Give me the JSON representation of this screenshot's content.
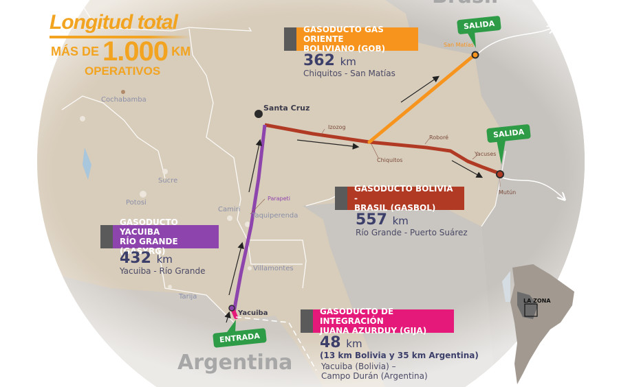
{
  "header": {
    "title": "Longitud total",
    "prefix": "MÁS DE",
    "amount": "1.000",
    "unit": "KM",
    "suffix": "OPERATIVOS"
  },
  "colors": {
    "gob": "#f7941d",
    "gasbol": "#b13a25",
    "gasyrg": "#8e44ad",
    "gija": "#e5197a",
    "callout": "#2e9b47",
    "headline": "#f2a31f"
  },
  "pipelines": [
    {
      "id": "gob",
      "name_line1": "GASODUCTO GAS ORIENTE",
      "name_line2": "BOLIVIANO (GOB)",
      "length": "362",
      "unit": "km",
      "route": "Chiquitos - San Matías"
    },
    {
      "id": "gasbol",
      "name_line1": "GASODUCTO BOLIVIA -",
      "name_line2": "BRASIL (GASBOL)",
      "length": "557",
      "unit": "km",
      "route": "Río Grande - Puerto Suárez"
    },
    {
      "id": "gasyrg",
      "name_line1": "GASODUCTO YACUIBA",
      "name_line2": "RÍO GRANDE (GASYRG)",
      "length": "432",
      "unit": "km",
      "route": "Yacuiba - Río Grande"
    },
    {
      "id": "gija",
      "name_line1": "GASODUCTO DE INTEGRACIÓN",
      "name_line2": "JUANA AZURDUY (GIJA)",
      "length": "48",
      "unit": "km",
      "detail": "(13 km Bolivia y 35 km Argentina)",
      "route_line1": "Yacuiba (Bolivia) –",
      "route_line2": "Campo Durán (Argentina)"
    }
  ],
  "callouts": {
    "exit1": "SALIDA",
    "exit2": "SALIDA",
    "entry": "ENTRADA"
  },
  "places": {
    "santa_cruz": "Santa Cruz",
    "cochabamba": "Cochabamba",
    "sucre": "Sucre",
    "potosi": "Potosi",
    "camiri": "Camiri",
    "parapeti": "Parapeti",
    "taquiperenda": "Taquiperenda",
    "villamontes": "Villamontes",
    "tarija": "Tarija",
    "yacuiba": "Yacuiba",
    "izozog": "Izozog",
    "chiquitos": "Chiquitos",
    "robore": "Roboré",
    "yacuses": "Yacuses",
    "san_matias": "San Matías",
    "mutun": "Mutún"
  },
  "countries": {
    "argentina": "Argentina",
    "brasil": "Brasil"
  },
  "inset": {
    "label": "LA ZONA"
  }
}
